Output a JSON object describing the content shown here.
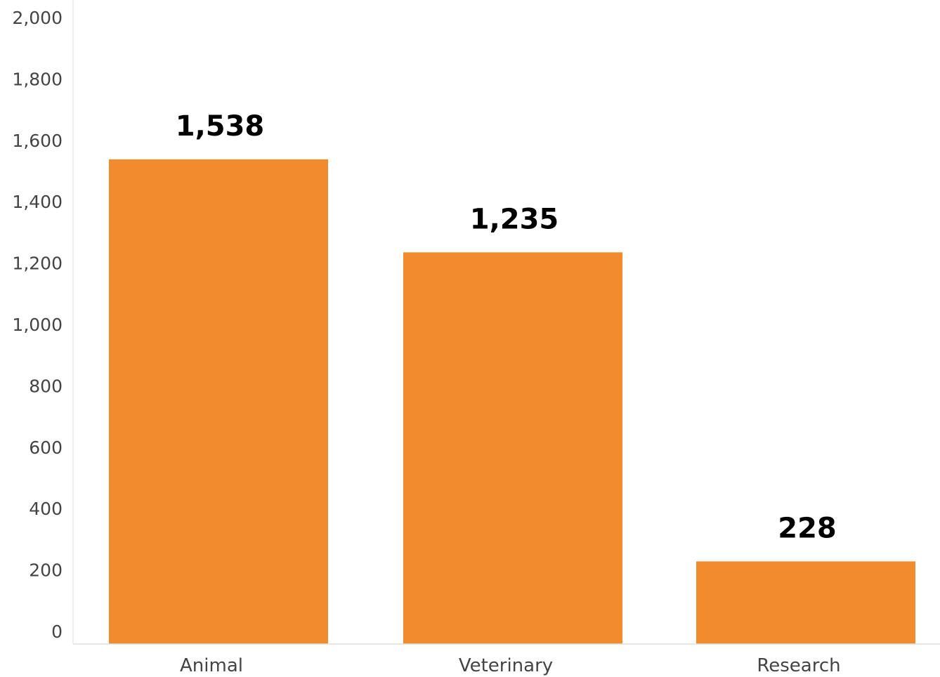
{
  "chart_data": {
    "type": "bar",
    "title": "",
    "xlabel": "",
    "ylabel": "",
    "categories": [
      "Animal",
      "Veterinary",
      "Research"
    ],
    "values": [
      1538,
      1235,
      228
    ],
    "data_labels": [
      "1,538",
      "1,235",
      "228"
    ],
    "ylim": [
      0,
      2000
    ],
    "yticks": [
      0,
      200,
      400,
      600,
      800,
      1000,
      1200,
      1400,
      1600,
      1800,
      2000
    ],
    "ytick_labels": [
      "0",
      "200",
      "400",
      "600",
      "800",
      "1,000",
      "1,200",
      "1,400",
      "1,600",
      "1,800",
      "2,000"
    ],
    "grid": false,
    "legend": "none",
    "colors": {
      "bar": "#F08C2E",
      "axis": "#DDDDDD",
      "tick_text": "#444444",
      "data_label_text": "#000000"
    }
  }
}
